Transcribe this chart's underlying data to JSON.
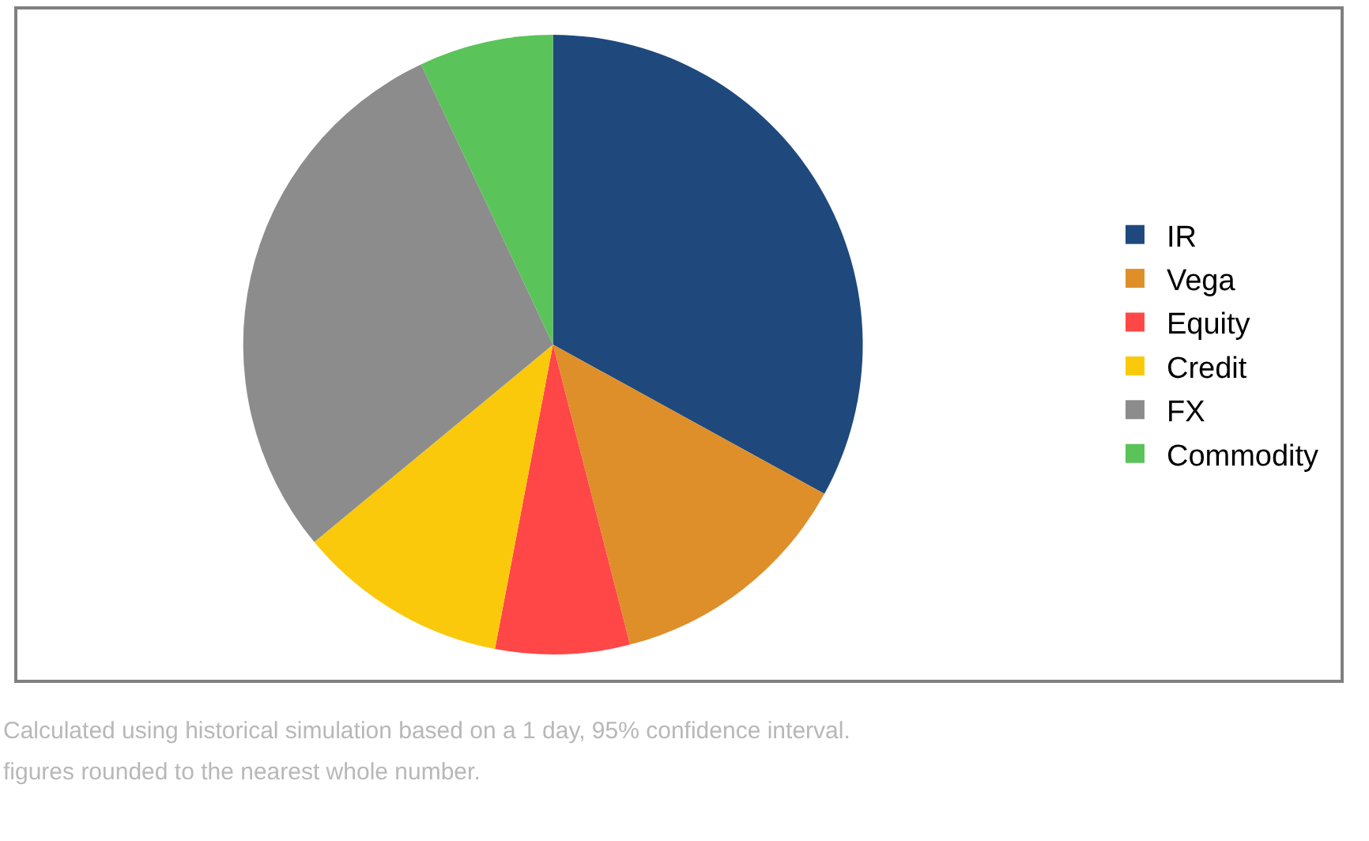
{
  "chart_data": {
    "type": "pie",
    "categories": [
      "IR",
      "Vega",
      "Equity",
      "Credit",
      "FX",
      "Commodity"
    ],
    "values": [
      33,
      13,
      7,
      11,
      29,
      7
    ],
    "colors": [
      "#1f497d",
      "#de8f2a",
      "#ff4747",
      "#fac90b",
      "#8c8c8c",
      "#5ac35a"
    ],
    "legend": "right",
    "annotations": [
      "Calculated using historical simulation based on a 1 day, 95% confidence interval.",
      "figures rounded to the nearest whole number."
    ]
  }
}
